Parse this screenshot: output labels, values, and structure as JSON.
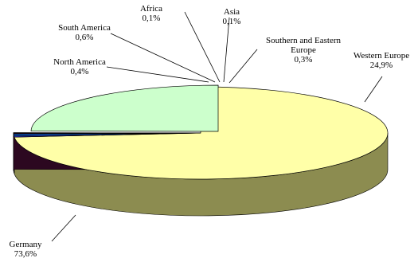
{
  "chart_data": {
    "type": "pie",
    "style": "3d-exploded",
    "unit": "%",
    "slices": [
      {
        "label": "Germany",
        "value": 73.6,
        "value_text": "73,6%",
        "color": "#ffffa8",
        "side_color": "#8c8c50"
      },
      {
        "label": "North America",
        "value": 0.4,
        "value_text": "0,4%",
        "color": "#3a3ad0",
        "side_color": "#1c1c70"
      },
      {
        "label": "South America",
        "value": 0.6,
        "value_text": "0,6%",
        "color": "#1070ff",
        "side_color": "#0a3d8a"
      },
      {
        "label": "Africa",
        "value": 0.1,
        "value_text": "0,1%",
        "color": "#e0e0e0",
        "side_color": "#808080"
      },
      {
        "label": "Asia",
        "value": 0.1,
        "value_text": "0,1%",
        "color": "#ffff40",
        "side_color": "#909020"
      },
      {
        "label": "Southern and Eastern Europe",
        "label_lines": [
          "Southern and Eastern",
          "Europe"
        ],
        "value": 0.3,
        "value_text": "0,3%",
        "color": "#5a1040",
        "side_color": "#2c0820"
      },
      {
        "label": "Western Europe",
        "value": 24.9,
        "value_text": "24,9%",
        "color": "#ccffcc",
        "side_color": "#5c8468"
      }
    ]
  }
}
